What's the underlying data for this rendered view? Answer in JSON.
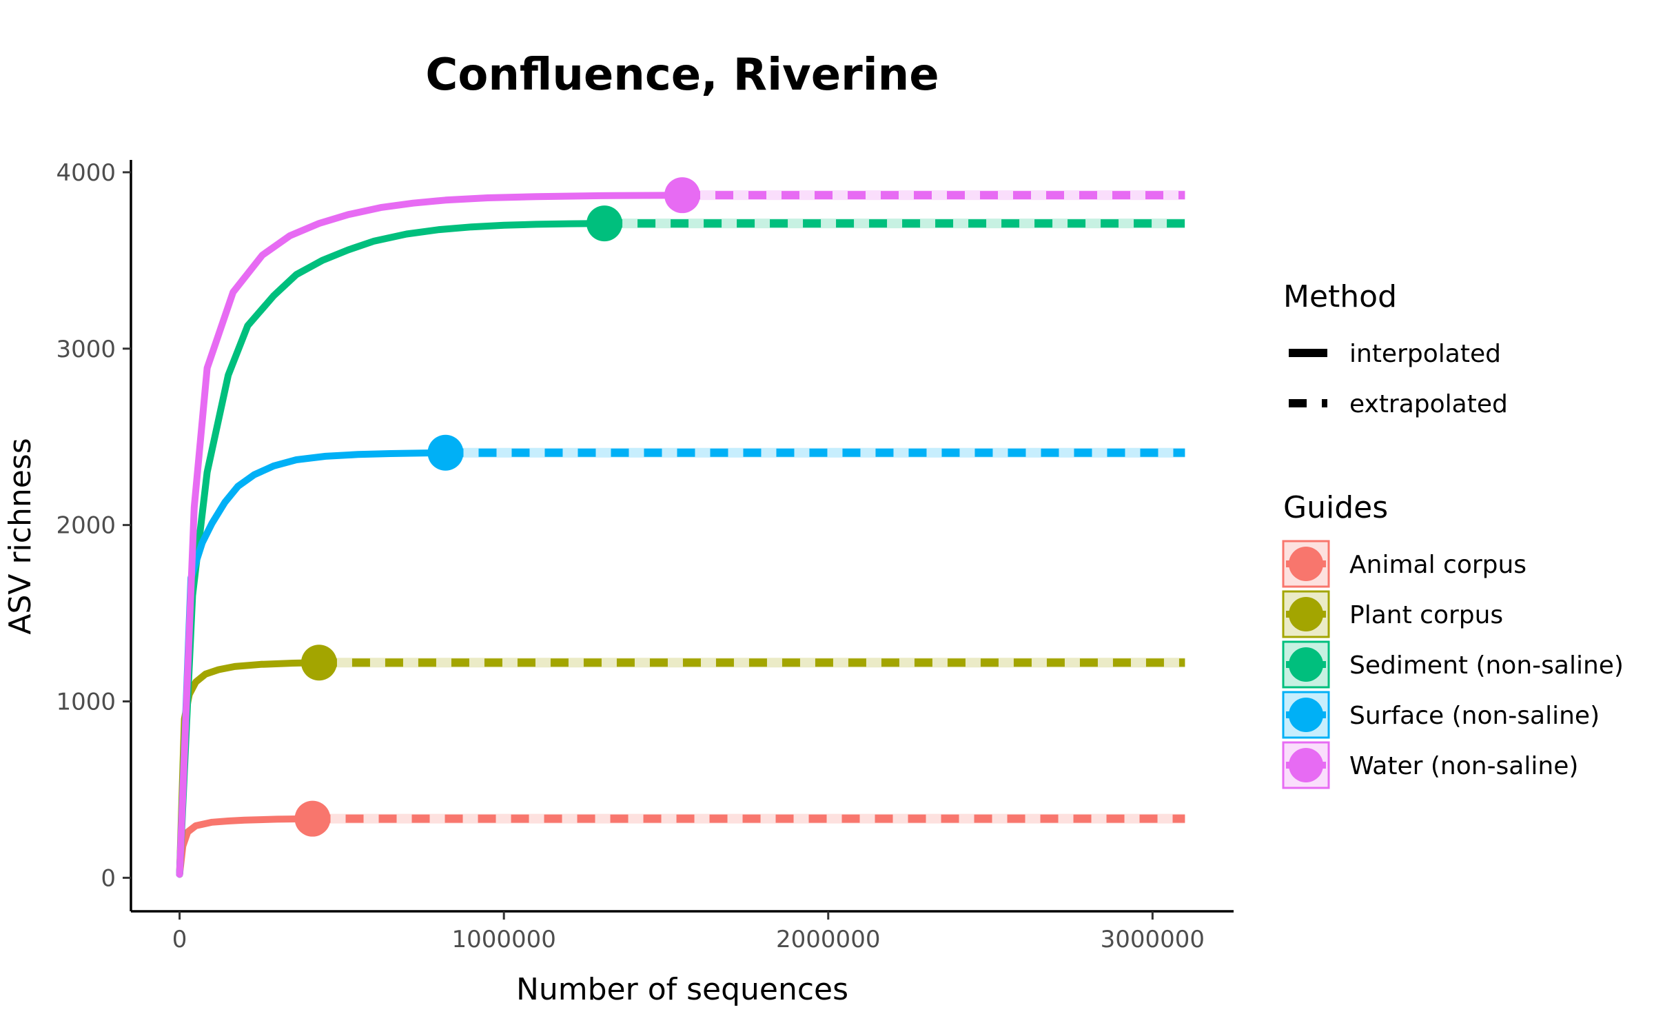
{
  "chart_data": {
    "type": "line",
    "title": "Confluence, Riverine",
    "xlabel": "Number of sequences",
    "ylabel": "ASV richness",
    "xlim": [
      -150000,
      3250000
    ],
    "ylim": [
      -190,
      4070
    ],
    "xticks": [
      0,
      1000000,
      2000000,
      3000000
    ],
    "xtick_labels": [
      "0",
      "1000000",
      "2000000",
      "3000000"
    ],
    "yticks": [
      0,
      1000,
      2000,
      3000,
      4000
    ],
    "ytick_labels": [
      "0",
      "1000",
      "2000",
      "3000",
      "4000"
    ],
    "grid": false,
    "legend_placement": "right",
    "legend": {
      "method_title": "Method",
      "method_entries": [
        {
          "label": "interpolated",
          "style": "solid"
        },
        {
          "label": "extrapolated",
          "style": "dashed"
        }
      ],
      "guides_title": "Guides"
    },
    "series": [
      {
        "name": "Animal corpus",
        "color": "#F8766D",
        "observed": [
          410000,
          335
        ],
        "x_max": 3100000,
        "asymptote": 335,
        "interpolated": [
          [
            0,
            20
          ],
          [
            10000,
            180
          ],
          [
            25000,
            260
          ],
          [
            50000,
            295
          ],
          [
            100000,
            315
          ],
          [
            150000,
            322
          ],
          [
            200000,
            327
          ],
          [
            300000,
            332
          ],
          [
            410000,
            335
          ]
        ]
      },
      {
        "name": "Plant corpus",
        "color": "#A3A500",
        "observed": [
          430000,
          1220
        ],
        "x_max": 3100000,
        "asymptote": 1220,
        "interpolated": [
          [
            0,
            20
          ],
          [
            15000,
            900
          ],
          [
            30000,
            1040
          ],
          [
            50000,
            1110
          ],
          [
            80000,
            1155
          ],
          [
            120000,
            1180
          ],
          [
            170000,
            1198
          ],
          [
            250000,
            1210
          ],
          [
            350000,
            1217
          ],
          [
            430000,
            1220
          ]
        ]
      },
      {
        "name": "Sediment (non-saline)",
        "color": "#00BF7D",
        "observed": [
          1310000,
          3710
        ],
        "x_max": 3100000,
        "asymptote": 3710,
        "interpolated": [
          [
            0,
            20
          ],
          [
            40000,
            1600
          ],
          [
            85000,
            2300
          ],
          [
            150000,
            2850
          ],
          [
            210000,
            3130
          ],
          [
            290000,
            3300
          ],
          [
            360000,
            3420
          ],
          [
            440000,
            3500
          ],
          [
            520000,
            3560
          ],
          [
            600000,
            3610
          ],
          [
            700000,
            3650
          ],
          [
            800000,
            3675
          ],
          [
            900000,
            3690
          ],
          [
            1000000,
            3700
          ],
          [
            1100000,
            3705
          ],
          [
            1200000,
            3708
          ],
          [
            1310000,
            3710
          ]
        ]
      },
      {
        "name": "Surface (non-saline)",
        "color": "#00B0F6",
        "observed": [
          820000,
          2410
        ],
        "x_max": 3100000,
        "asymptote": 2410,
        "interpolated": [
          [
            0,
            20
          ],
          [
            35000,
            1700
          ],
          [
            70000,
            1900
          ],
          [
            100000,
            2010
          ],
          [
            140000,
            2130
          ],
          [
            180000,
            2220
          ],
          [
            230000,
            2285
          ],
          [
            290000,
            2335
          ],
          [
            360000,
            2370
          ],
          [
            450000,
            2390
          ],
          [
            550000,
            2400
          ],
          [
            650000,
            2405
          ],
          [
            820000,
            2410
          ]
        ]
      },
      {
        "name": "Water (non-saline)",
        "color": "#E76BF3",
        "observed": [
          1550000,
          3870
        ],
        "x_max": 3100000,
        "asymptote": 3870,
        "interpolated": [
          [
            0,
            20
          ],
          [
            45000,
            2100
          ],
          [
            85000,
            2890
          ],
          [
            165000,
            3320
          ],
          [
            255000,
            3530
          ],
          [
            340000,
            3640
          ],
          [
            430000,
            3710
          ],
          [
            520000,
            3760
          ],
          [
            620000,
            3800
          ],
          [
            720000,
            3825
          ],
          [
            820000,
            3842
          ],
          [
            950000,
            3855
          ],
          [
            1100000,
            3862
          ],
          [
            1300000,
            3867
          ],
          [
            1550000,
            3870
          ]
        ]
      }
    ]
  }
}
